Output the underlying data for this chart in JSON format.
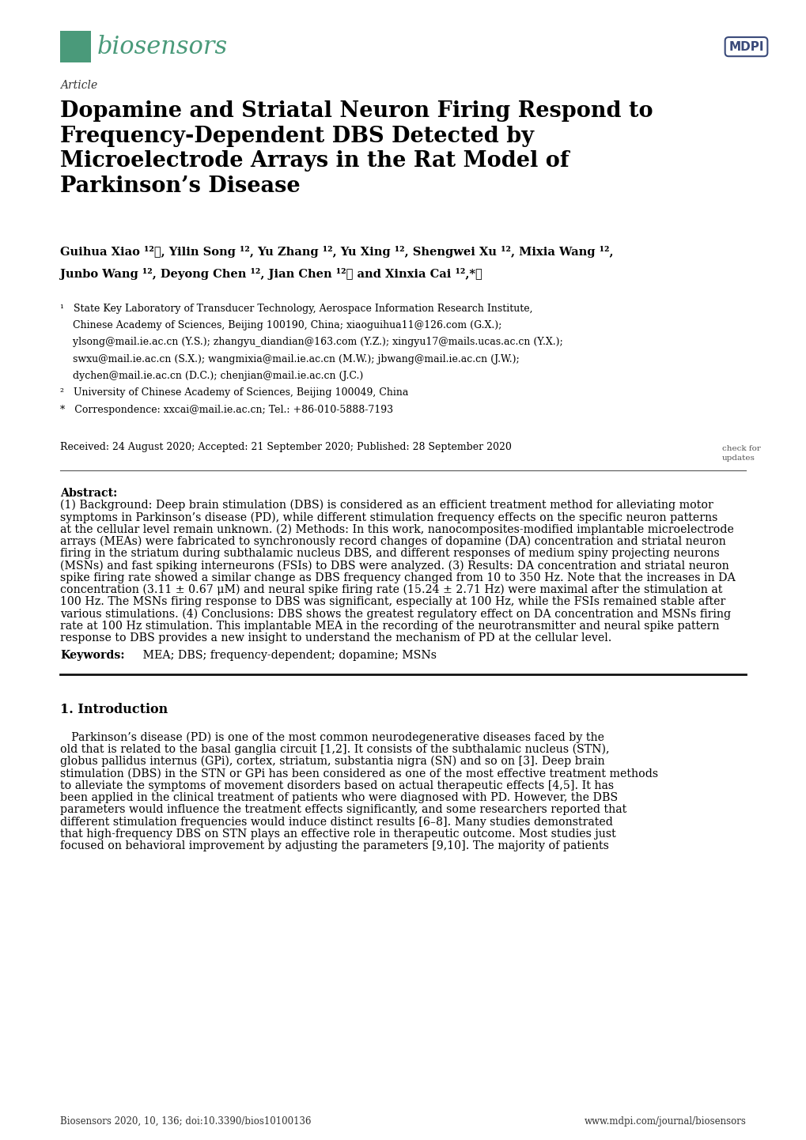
{
  "page_bg": "#ffffff",
  "text_color": "#000000",
  "journal_name": "biosensors",
  "journal_color": "#4a9a7a",
  "article_label": "Article",
  "title": "Dopamine and Striatal Neuron Firing Respond to\nFrequency-Dependent DBS Detected by\nMicroelectrode Arrays in the Rat Model of\nParkinson’s Disease",
  "authors_line1": "Guihua Xiao ¹²ⓘ, Yilin Song ¹², Yu Zhang ¹², Yu Xing ¹², Shengwei Xu ¹², Mixia Wang ¹²,",
  "authors_line2": "Junbo Wang ¹², Deyong Chen ¹², Jian Chen ¹²ⓘ and Xinxia Cai ¹²,*ⓘ",
  "aff_lines": [
    "¹   State Key Laboratory of Transducer Technology, Aerospace Information Research Institute,",
    "    Chinese Academy of Sciences, Beijing 100190, China; xiaoguihua11@126.com (G.X.);",
    "    ylsong@mail.ie.ac.cn (Y.S.); zhangyu_diandian@163.com (Y.Z.); xingyu17@mails.ucas.ac.cn (Y.X.);",
    "    swxu@mail.ie.ac.cn (S.X.); wangmixia@mail.ie.ac.cn (M.W.); jbwang@mail.ie.ac.cn (J.W.);",
    "    dychen@mail.ie.ac.cn (D.C.); chenjian@mail.ie.ac.cn (J.C.)",
    "²   University of Chinese Academy of Sciences, Beijing 100049, China",
    "*   Correspondence: xxcai@mail.ie.ac.cn; Tel.: +86-010-5888-7193"
  ],
  "received": "Received: 24 August 2020; Accepted: 21 September 2020; Published: 28 September 2020",
  "abstract_text_lines": [
    "(1) Background: Deep brain stimulation (DBS) is considered as an efficient treatment method for alleviating motor",
    "symptoms in Parkinson’s disease (PD), while different stimulation frequency effects on the specific neuron patterns",
    "at the cellular level remain unknown. (2) Methods: In this work, nanocomposites-modified implantable microelectrode",
    "arrays (MEAs) were fabricated to synchronously record changes of dopamine (DA) concentration and striatal neuron",
    "firing in the striatum during subthalamic nucleus DBS, and different responses of medium spiny projecting neurons",
    "(MSNs) and fast spiking interneurons (FSIs) to DBS were analyzed. (3) Results: DA concentration and striatal neuron",
    "spike firing rate showed a similar change as DBS frequency changed from 10 to 350 Hz. Note that the increases in DA",
    "concentration (3.11 ± 0.67 μM) and neural spike firing rate (15.24 ± 2.71 Hz) were maximal after the stimulation at",
    "100 Hz. The MSNs firing response to DBS was significant, especially at 100 Hz, while the FSIs remained stable after",
    "various stimulations. (4) Conclusions: DBS shows the greatest regulatory effect on DA concentration and MSNs firing",
    "rate at 100 Hz stimulation. This implantable MEA in the recording of the neurotransmitter and neural spike pattern",
    "response to DBS provides a new insight to understand the mechanism of PD at the cellular level."
  ],
  "keywords_bold": "Keywords:",
  "keywords_rest": " MEA; DBS; frequency-dependent; dopamine; MSNs",
  "section1_title": "1. Introduction",
  "intro_lines": [
    " Parkinson’s disease (PD) is one of the most common neurodegenerative diseases faced by the",
    "old that is related to the basal ganglia circuit [1,2]. It consists of the subthalamic nucleus (STN),",
    "globus pallidus internus (GPi), cortex, striatum, substantia nigra (SN) and so on [3]. Deep brain",
    "stimulation (DBS) in the STN or GPi has been considered as one of the most effective treatment methods",
    "to alleviate the symptoms of movement disorders based on actual therapeutic effects [4,5]. It has",
    "been applied in the clinical treatment of patients who were diagnosed with PD. However, the DBS",
    "parameters would influence the treatment effects significantly, and some researchers reported that",
    "different stimulation frequencies would induce distinct results [6–8]. Many studies demonstrated",
    "that high-frequency DBS on STN plays an effective role in therapeutic outcome. Most studies just",
    "focused on behavioral improvement by adjusting the parameters [9,10]. The majority of patients"
  ],
  "footer_left": "Biosensors 2020, 10, 136; doi:10.3390/bios10100136",
  "footer_right": "www.mdpi.com/journal/biosensors"
}
